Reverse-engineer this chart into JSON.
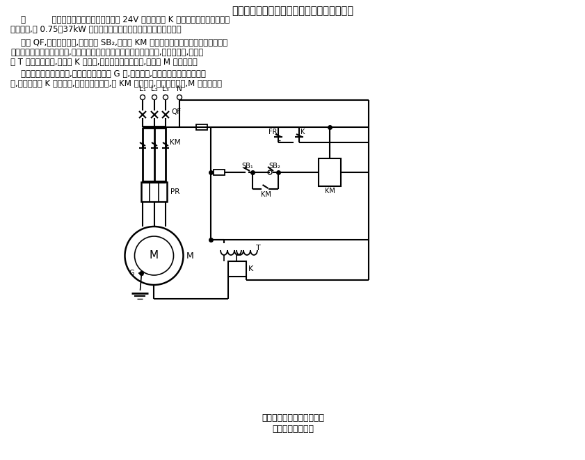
{
  "title": "用灵敏继电器保护小型异步电动机的控制电路",
  "para1a": "    图          所示异步电动机的保护电路为用 24V 灵敏继电器 K 和自制探针组成的电动机",
  "para1b": "保护电路,对 0.75～37kW 电动机浸水或定转子相擦时实现自动保护。",
  "para2a": "    合上 QF,接通三相电源,按下按钮 SB",
  "para2b": "2",
  "para2c": ",接触器 KM 得电吸合并自锁。如果安装在电动机",
  "para2d": "定子底槽中的探针不接触定,转子铁心或在位于机壳中的进水水位以上,或没有进水,则变压",
  "para2e": "器 T 的二次侧开路,继电器 K 不得电,其常闭触点保持闭合,电动机 M 正常运转。",
  "para3a": "    当电动机壳体内浸水时,水位上升到探针头 G 点,探针接地,变压器二次侧形成闭合回",
  "para3b": "路,灵敏继电器 K 得电吸合,其常闭触点断开,使 KM 失电释放,其主触点断开,M 停止运转。",
  "caption1": "用灵敏继电器保护小型异步",
  "caption2": "电动机的控制电路",
  "bg_color": "#ffffff",
  "text_color": "#000000",
  "line_color": "#000000",
  "lw": 1.5
}
